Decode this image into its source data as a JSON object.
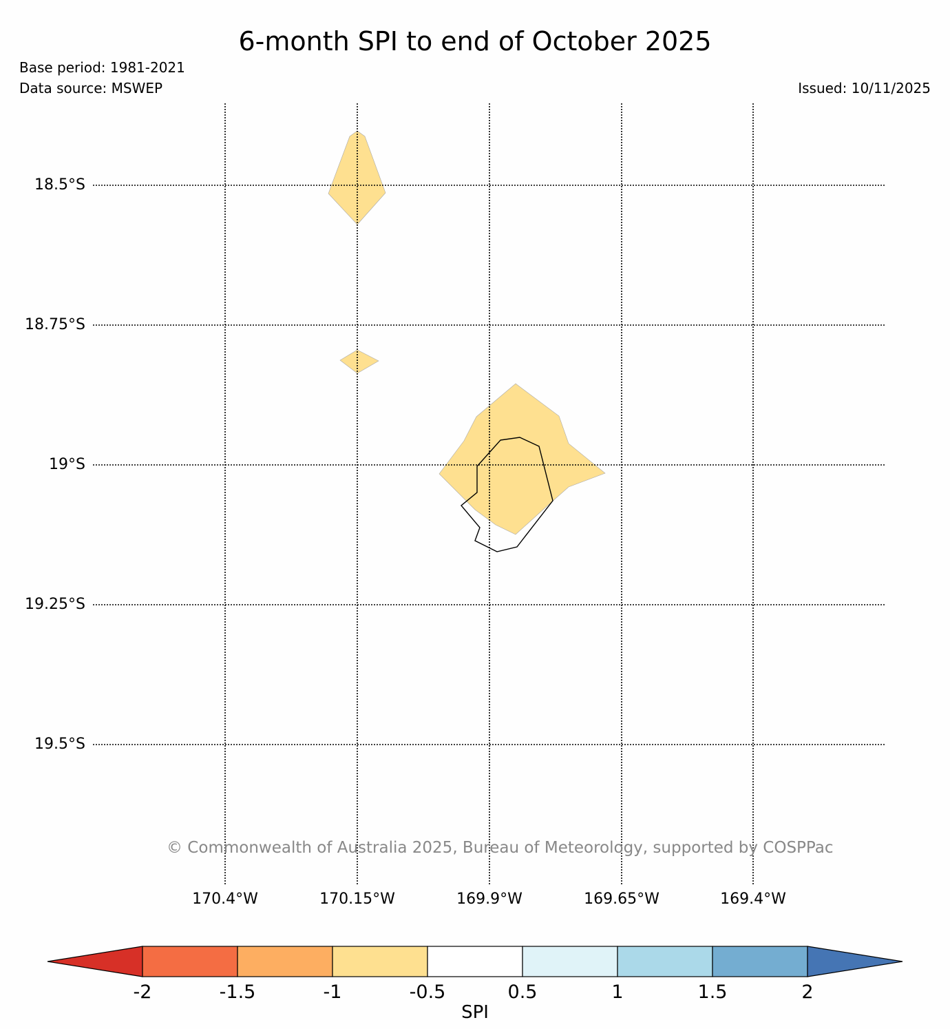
{
  "title": "6-month SPI to end of October 2025",
  "base_period": "Base period: 1981-2021",
  "data_source": "Data source: MSWEP",
  "issued": "Issued: 10/11/2025",
  "copyright": "© Commonwealth of Australia 2025, Bureau of Meteorology, supported by COSPPac",
  "map": {
    "lat_labels": [
      "18.5°S",
      "18.75°S",
      "19°S",
      "19.25°S",
      "19.5°S"
    ],
    "lon_labels": [
      "170.4°W",
      "170.15°W",
      "169.9°W",
      "169.65°W",
      "169.4°W"
    ],
    "shaded_areas": [
      {
        "region": "north patch",
        "category": "-1 to -0.5",
        "color": "#fee090"
      },
      {
        "region": "small diamond",
        "category": "-1 to -0.5",
        "color": "#fee090"
      },
      {
        "region": "Niue area",
        "category": "-1 to -0.5",
        "color": "#fee090"
      }
    ],
    "coastline": "Niue"
  },
  "colorbar": {
    "label": "SPI",
    "ticks": [
      "-2",
      "-1.5",
      "-1",
      "-0.5",
      "0.5",
      "1",
      "1.5",
      "2"
    ],
    "colors": [
      "#d73027",
      "#f46d43",
      "#fdae61",
      "#fee090",
      "#ffffff",
      "#e0f3f8",
      "#abd9e9",
      "#74add1",
      "#4575b4"
    ]
  }
}
